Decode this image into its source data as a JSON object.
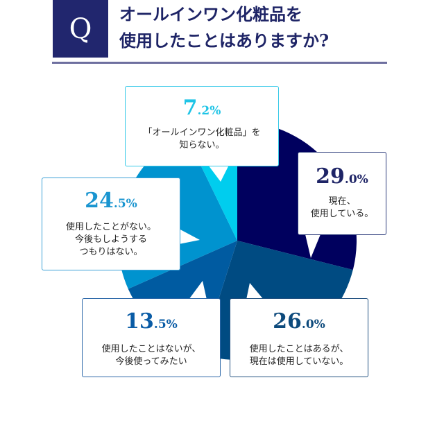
{
  "header": {
    "q_label": "Q",
    "title_line1": "オールインワン化粧品を",
    "title_line2": "使用したことはありますか?"
  },
  "chart_data": {
    "type": "pie",
    "title": "オールインワン化粧品を使用したことはありますか?",
    "start": "12 o'clock, clockwise",
    "slices": [
      {
        "label": "現在、使用している。",
        "value": 29.0,
        "color": "#00005e"
      },
      {
        "label": "使用したことはあるが、現在は使用していない。",
        "value": 26.0,
        "color": "#004b82"
      },
      {
        "label": "使用したことはないが、今後使ってみたい",
        "value": 13.5,
        "color": "#005ba1"
      },
      {
        "label": "使用したことがない。今後もしようするつもりはない。",
        "value": 24.5,
        "color": "#0093cf"
      },
      {
        "label": "「オールインワン化粧品」を知らない。",
        "value": 7.2,
        "color": "#00cdee"
      }
    ]
  },
  "callouts": {
    "c1": {
      "int": "29",
      "dec": ".0%",
      "line1": "現在、",
      "line2": "使用している。",
      "line3": "",
      "color": "#1e2466"
    },
    "c2": {
      "int": "26",
      "dec": ".0%",
      "line1": "使用したことはあるが、",
      "line2": "現在は使用していない。",
      "line3": "",
      "color": "#0d4a7c"
    },
    "c3": {
      "int": "13",
      "dec": ".5%",
      "line1": "使用したことはないが、",
      "line2": "今後使ってみたい",
      "line3": "",
      "color": "#0a5ca6"
    },
    "c4": {
      "int": "24",
      "dec": ".5%",
      "line1": "使用したことがない。",
      "line2": "今後もしようする",
      "line3": "つもりはない。",
      "color": "#1a95d0"
    },
    "c5": {
      "int": "7",
      "dec": ".2%",
      "line1": "「オールインワン化粧品」を",
      "line2": "知らない。",
      "line3": "",
      "color": "#1fc4e6"
    }
  }
}
